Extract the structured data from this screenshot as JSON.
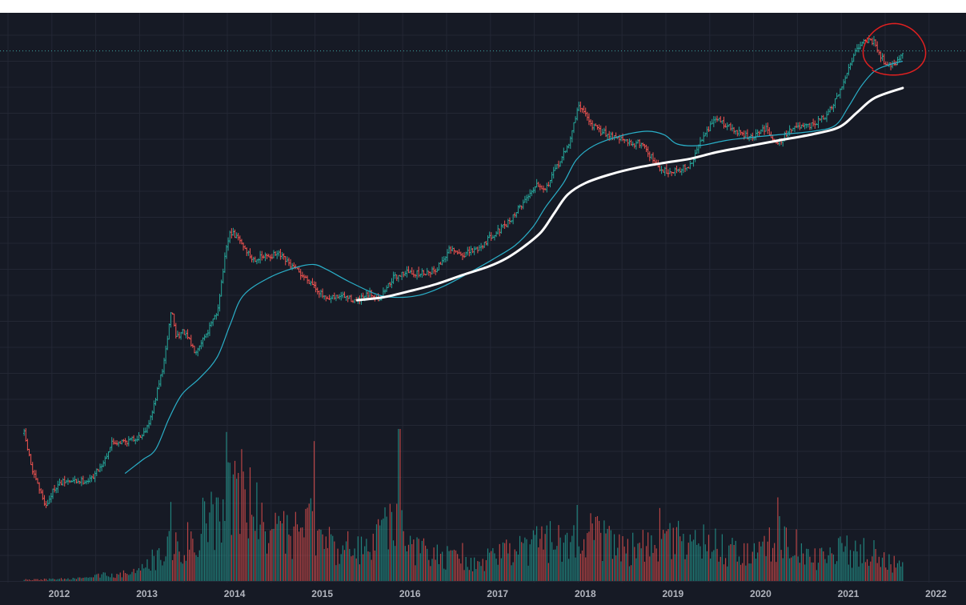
{
  "colors": {
    "background": "#161a25",
    "grid": "#232734",
    "up": "#26a69a",
    "down": "#ef5350",
    "ma_fast": "#2ab0c9",
    "ma_slow": "#ffffff",
    "annotation": "#e02020",
    "price_line": "#3fa3a3",
    "axis_text": "#b2b5be"
  },
  "chart_data": {
    "type": "candlestick",
    "scale": "log",
    "grid": true,
    "x_axis": {
      "ticks": [
        "2012",
        "2013",
        "2014",
        "2015",
        "2016",
        "2017",
        "2018",
        "2019",
        "2020",
        "2021",
        "2022"
      ],
      "range": [
        2011.6,
        2022.2
      ]
    },
    "y_axis": {
      "range_usd": [
        1.7,
        90000
      ]
    },
    "price_path": [
      [
        2011.6,
        14
      ],
      [
        2011.7,
        6
      ],
      [
        2011.85,
        3
      ],
      [
        2011.95,
        4.5
      ],
      [
        2012.05,
        5
      ],
      [
        2012.35,
        5.2
      ],
      [
        2012.5,
        7.5
      ],
      [
        2012.6,
        11.5
      ],
      [
        2012.8,
        12
      ],
      [
        2012.95,
        13.5
      ],
      [
        2013.05,
        20
      ],
      [
        2013.2,
        65
      ],
      [
        2013.28,
        200
      ],
      [
        2013.33,
        110
      ],
      [
        2013.42,
        120
      ],
      [
        2013.55,
        80
      ],
      [
        2013.7,
        125
      ],
      [
        2013.8,
        180
      ],
      [
        2013.9,
        650
      ],
      [
        2013.95,
        1000
      ],
      [
        2014.05,
        850
      ],
      [
        2014.2,
        560
      ],
      [
        2014.4,
        600
      ],
      [
        2014.5,
        620
      ],
      [
        2014.65,
        480
      ],
      [
        2014.8,
        380
      ],
      [
        2014.9,
        330
      ],
      [
        2015.05,
        230
      ],
      [
        2015.2,
        260
      ],
      [
        2015.4,
        230
      ],
      [
        2015.55,
        270
      ],
      [
        2015.65,
        240
      ],
      [
        2015.8,
        370
      ],
      [
        2015.95,
        430
      ],
      [
        2016.1,
        410
      ],
      [
        2016.3,
        450
      ],
      [
        2016.45,
        680
      ],
      [
        2016.6,
        610
      ],
      [
        2016.8,
        720
      ],
      [
        2016.95,
        950
      ],
      [
        2017.1,
        1150
      ],
      [
        2017.3,
        1900
      ],
      [
        2017.45,
        2800
      ],
      [
        2017.55,
        2500
      ],
      [
        2017.7,
        4300
      ],
      [
        2017.8,
        6000
      ],
      [
        2017.92,
        14000
      ],
      [
        2017.98,
        13500
      ],
      [
        2018.05,
        10000
      ],
      [
        2018.15,
        8500
      ],
      [
        2018.35,
        7500
      ],
      [
        2018.5,
        6500
      ],
      [
        2018.65,
        6500
      ],
      [
        2018.85,
        3700
      ],
      [
        2018.98,
        3600
      ],
      [
        2019.2,
        4000
      ],
      [
        2019.35,
        8000
      ],
      [
        2019.5,
        11000
      ],
      [
        2019.7,
        8500
      ],
      [
        2019.9,
        7200
      ],
      [
        2020.05,
        9000
      ],
      [
        2020.2,
        6500
      ],
      [
        2020.35,
        9000
      ],
      [
        2020.55,
        9200
      ],
      [
        2020.75,
        11500
      ],
      [
        2020.9,
        18500
      ],
      [
        2021.0,
        32000
      ],
      [
        2021.1,
        50000
      ],
      [
        2021.2,
        58000
      ],
      [
        2021.3,
        56000
      ],
      [
        2021.4,
        37000
      ],
      [
        2021.5,
        34000
      ],
      [
        2021.6,
        40000
      ],
      [
        2021.62,
        46000
      ]
    ],
    "ma_fast_path": [
      [
        2012.75,
        6
      ],
      [
        2012.95,
        8
      ],
      [
        2013.1,
        10
      ],
      [
        2013.25,
        19
      ],
      [
        2013.4,
        32
      ],
      [
        2013.6,
        45
      ],
      [
        2013.8,
        70
      ],
      [
        2013.95,
        140
      ],
      [
        2014.1,
        260
      ],
      [
        2014.4,
        380
      ],
      [
        2014.7,
        470
      ],
      [
        2014.9,
        500
      ],
      [
        2015.05,
        450
      ],
      [
        2015.3,
        350
      ],
      [
        2015.6,
        270
      ],
      [
        2015.8,
        250
      ],
      [
        2016.1,
        260
      ],
      [
        2016.4,
        320
      ],
      [
        2016.7,
        430
      ],
      [
        2016.95,
        560
      ],
      [
        2017.2,
        750
      ],
      [
        2017.4,
        1100
      ],
      [
        2017.55,
        1700
      ],
      [
        2017.75,
        2800
      ],
      [
        2017.9,
        4600
      ],
      [
        2018.1,
        6200
      ],
      [
        2018.4,
        7600
      ],
      [
        2018.7,
        8400
      ],
      [
        2018.9,
        7800
      ],
      [
        2019.05,
        6400
      ],
      [
        2019.3,
        6200
      ],
      [
        2019.6,
        6900
      ],
      [
        2019.9,
        7400
      ],
      [
        2020.2,
        7800
      ],
      [
        2020.6,
        8400
      ],
      [
        2020.85,
        9500
      ],
      [
        2021.0,
        14000
      ],
      [
        2021.15,
        22000
      ],
      [
        2021.3,
        30000
      ],
      [
        2021.45,
        34000
      ],
      [
        2021.62,
        37000
      ]
    ],
    "ma_slow_path": [
      [
        2015.4,
        235
      ],
      [
        2015.7,
        250
      ],
      [
        2016.0,
        285
      ],
      [
        2016.3,
        330
      ],
      [
        2016.6,
        400
      ],
      [
        2016.9,
        480
      ],
      [
        2017.1,
        570
      ],
      [
        2017.3,
        730
      ],
      [
        2017.5,
        1000
      ],
      [
        2017.65,
        1500
      ],
      [
        2017.8,
        2200
      ],
      [
        2018.0,
        2800
      ],
      [
        2018.3,
        3400
      ],
      [
        2018.6,
        3900
      ],
      [
        2018.9,
        4300
      ],
      [
        2019.2,
        4700
      ],
      [
        2019.5,
        5400
      ],
      [
        2019.8,
        6000
      ],
      [
        2020.2,
        6900
      ],
      [
        2020.6,
        7900
      ],
      [
        2020.9,
        9200
      ],
      [
        2021.1,
        12500
      ],
      [
        2021.3,
        17000
      ],
      [
        2021.62,
        21000
      ]
    ],
    "volume_profile": [
      [
        2011.6,
        0.01
      ],
      [
        2012.3,
        0.02
      ],
      [
        2012.5,
        0.05
      ],
      [
        2012.9,
        0.07
      ],
      [
        2013.2,
        0.25
      ],
      [
        2013.5,
        0.35
      ],
      [
        2013.8,
        0.6
      ],
      [
        2014.0,
        0.8
      ],
      [
        2014.3,
        0.5
      ],
      [
        2014.6,
        0.35
      ],
      [
        2014.9,
        0.45
      ],
      [
        2015.1,
        0.3
      ],
      [
        2015.5,
        0.25
      ],
      [
        2015.8,
        0.5
      ],
      [
        2016.1,
        0.25
      ],
      [
        2016.6,
        0.15
      ],
      [
        2017.0,
        0.2
      ],
      [
        2017.5,
        0.3
      ],
      [
        2017.9,
        0.4
      ],
      [
        2018.2,
        0.35
      ],
      [
        2018.6,
        0.25
      ],
      [
        2018.9,
        0.35
      ],
      [
        2019.4,
        0.3
      ],
      [
        2019.9,
        0.2
      ],
      [
        2020.2,
        0.35
      ],
      [
        2020.6,
        0.2
      ],
      [
        2021.0,
        0.25
      ],
      [
        2021.3,
        0.22
      ],
      [
        2021.62,
        0.1
      ]
    ],
    "volume_spikes": [
      [
        2013.27,
        0.52
      ],
      [
        2013.91,
        0.98
      ],
      [
        2014.1,
        0.72
      ],
      [
        2014.9,
        0.92
      ],
      [
        2015.88,
        1.0
      ],
      [
        2016.6,
        0.25
      ],
      [
        2017.9,
        0.5
      ],
      [
        2018.85,
        0.48
      ],
      [
        2020.2,
        0.55
      ]
    ],
    "current_price_usd": 46000,
    "annotation": {
      "type": "circle",
      "around": "2021 peak"
    }
  }
}
